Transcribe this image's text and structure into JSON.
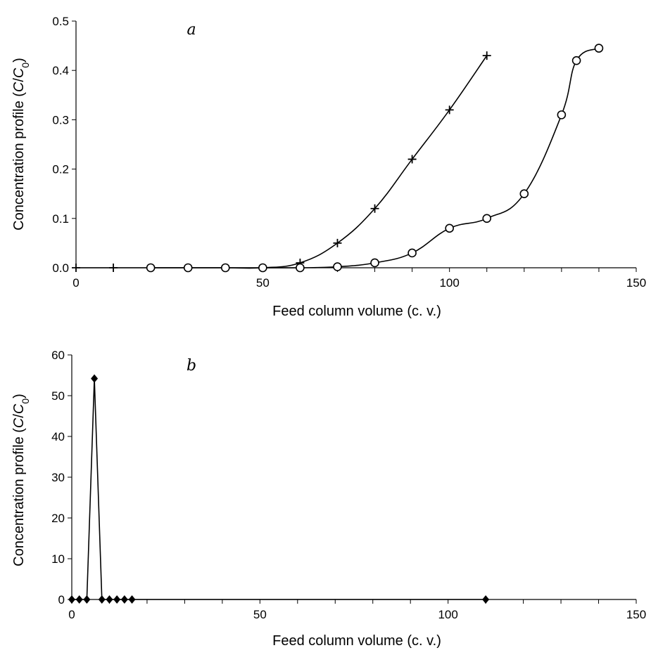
{
  "chart_data": [
    {
      "type": "scatter",
      "panel_label": "a",
      "xlabel": "Feed column volume (c. v.)",
      "ylabel": {
        "prefix": "Concentration profile (",
        "c": "C",
        "slash": "/",
        "c0": "C",
        "sub": "0",
        "suffix": ")"
      },
      "xlim": [
        0,
        150
      ],
      "ylim": [
        0,
        0.5
      ],
      "x_ticks": [
        0,
        50,
        100,
        150
      ],
      "x_minor_step": 10,
      "y_ticks": [
        "0.0",
        "0.1",
        "0.2",
        "0.3",
        "0.4",
        "0.5"
      ],
      "grid": false,
      "legend": "none",
      "series": [
        {
          "marker": "plus",
          "smooth": true,
          "x": [
            0,
            10,
            20,
            30,
            40,
            50,
            60,
            70,
            80,
            90,
            100,
            110
          ],
          "y": [
            0,
            0,
            0,
            0,
            0,
            0,
            0.01,
            0.05,
            0.12,
            0.22,
            0.32,
            0.43
          ]
        },
        {
          "marker": "circle",
          "smooth": true,
          "x": [
            20,
            30,
            40,
            50,
            60,
            70,
            80,
            90,
            100,
            110,
            120,
            130,
            134,
            140
          ],
          "y": [
            0,
            0,
            0,
            0,
            0,
            0.002,
            0.01,
            0.03,
            0.08,
            0.1,
            0.15,
            0.31,
            0.42,
            0.445
          ]
        }
      ]
    },
    {
      "type": "line",
      "panel_label": "b",
      "xlabel": "Feed column volume (c. v.)",
      "ylabel": {
        "prefix": "Concentration profile (",
        "c": "C",
        "slash": "/",
        "c0": "C",
        "sub": "0",
        "suffix": ")"
      },
      "xlim": [
        0,
        150
      ],
      "ylim": [
        0,
        60
      ],
      "x_ticks": [
        0,
        50,
        100,
        150
      ],
      "x_minor_step": 10,
      "y_ticks": [
        "0",
        "10",
        "20",
        "30",
        "40",
        "50",
        "60"
      ],
      "grid": false,
      "legend": "none",
      "series": [
        {
          "marker": "diamond",
          "smooth": false,
          "x": [
            0,
            2,
            4,
            6,
            8,
            10,
            12,
            14,
            16,
            110
          ],
          "y": [
            0,
            0,
            0,
            54.2,
            0,
            0,
            0,
            0,
            0,
            0
          ]
        }
      ]
    }
  ]
}
